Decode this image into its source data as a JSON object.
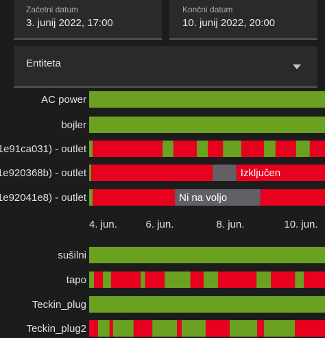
{
  "form": {
    "start_label": "Začetni datum",
    "start_value": "3. junij 2022, 17:00",
    "end_label": "Končni datum",
    "end_value": "10. junij 2022, 20:00",
    "entity_label": "Entiteta"
  },
  "timelines": [
    {
      "xlim": [
        4,
        10.68
      ],
      "xticks": [
        {
          "value": 4,
          "label": "4. jun."
        },
        {
          "value": 6,
          "label": "6. jun."
        },
        {
          "value": 8,
          "label": "8. jun."
        },
        {
          "value": 10,
          "label": "10. jun."
        }
      ],
      "rows": [
        {
          "name": "AC power",
          "segments": [
            {
              "from": 4,
              "to": 10.68,
              "color": "#6aa121"
            }
          ]
        },
        {
          "name": "bojler",
          "segments": [
            {
              "from": 4,
              "to": 10.68,
              "color": "#6aa121"
            }
          ]
        },
        {
          "name": "1e91ca031) - outlet",
          "segments": [
            {
              "from": 4,
              "to": 4.1,
              "color": "#6aa121"
            },
            {
              "from": 4.1,
              "to": 6.08,
              "color": "#e8011e"
            },
            {
              "from": 6.08,
              "to": 6.39,
              "color": "#6aa121"
            },
            {
              "from": 6.39,
              "to": 7.05,
              "color": "#e8011e"
            },
            {
              "from": 7.05,
              "to": 7.36,
              "color": "#6aa121"
            },
            {
              "from": 7.36,
              "to": 7.79,
              "color": "#e8011e"
            },
            {
              "from": 7.79,
              "to": 8.31,
              "color": "#6aa121"
            },
            {
              "from": 8.31,
              "to": 8.95,
              "color": "#e8011e"
            },
            {
              "from": 8.95,
              "to": 9.28,
              "color": "#6aa121"
            },
            {
              "from": 9.28,
              "to": 9.86,
              "color": "#e8011e"
            },
            {
              "from": 9.86,
              "to": 10.25,
              "color": "#6aa121"
            },
            {
              "from": 10.25,
              "to": 10.68,
              "color": "#e8011e"
            }
          ]
        },
        {
          "name": "1e920368b) - outlet",
          "segments": [
            {
              "from": 4,
              "to": 4.06,
              "color": "#6aa121"
            },
            {
              "from": 4.06,
              "to": 7.5,
              "color": "#e8011e"
            },
            {
              "from": 7.5,
              "to": 8.17,
              "color": "#616165"
            },
            {
              "from": 8.17,
              "to": 10.68,
              "color": "#e8011e",
              "label": "Izključen"
            }
          ]
        },
        {
          "name": "1e92041e8) - outlet",
          "segments": [
            {
              "from": 4,
              "to": 4.1,
              "color": "#6aa121"
            },
            {
              "from": 4.1,
              "to": 6.43,
              "color": "#e8011e"
            },
            {
              "from": 6.43,
              "to": 8.85,
              "color": "#616165",
              "label": "Ni na voljo"
            },
            {
              "from": 8.85,
              "to": 10.68,
              "color": "#e8011e"
            }
          ]
        }
      ]
    },
    {
      "xlim": [
        4,
        10.68
      ],
      "rows": [
        {
          "name": "sušilni",
          "segments": [
            {
              "from": 4,
              "to": 10.68,
              "color": "#6aa121"
            }
          ]
        },
        {
          "name": "tapo",
          "segments": [
            {
              "from": 4,
              "to": 4.14,
              "color": "#6aa121"
            },
            {
              "from": 4.14,
              "to": 4.39,
              "color": "#e8011e"
            },
            {
              "from": 4.39,
              "to": 4.62,
              "color": "#6aa121"
            },
            {
              "from": 4.62,
              "to": 5.46,
              "color": "#e8011e"
            },
            {
              "from": 5.46,
              "to": 5.59,
              "color": "#6aa121"
            },
            {
              "from": 5.59,
              "to": 6.14,
              "color": "#e8011e"
            },
            {
              "from": 6.14,
              "to": 6.87,
              "color": "#6aa121"
            },
            {
              "from": 6.87,
              "to": 7.24,
              "color": "#e8011e"
            },
            {
              "from": 7.24,
              "to": 7.65,
              "color": "#6aa121"
            },
            {
              "from": 7.65,
              "to": 8.74,
              "color": "#e8011e"
            },
            {
              "from": 8.74,
              "to": 9.15,
              "color": "#6aa121"
            },
            {
              "from": 9.15,
              "to": 9.83,
              "color": "#e8011e"
            },
            {
              "from": 9.83,
              "to": 10.08,
              "color": "#6aa121"
            },
            {
              "from": 10.08,
              "to": 10.68,
              "color": "#e8011e"
            }
          ]
        },
        {
          "name": "Teckin_plug",
          "segments": [
            {
              "from": 4,
              "to": 10.68,
              "color": "#6aa121"
            }
          ]
        },
        {
          "name": "Teckin_plug2",
          "segments": [
            {
              "from": 4,
              "to": 4.25,
              "color": "#e8011e"
            },
            {
              "from": 4.25,
              "to": 4.58,
              "color": "#6aa121"
            },
            {
              "from": 4.58,
              "to": 4.68,
              "color": "#e8011e"
            },
            {
              "from": 4.68,
              "to": 5.26,
              "color": "#6aa121"
            },
            {
              "from": 5.26,
              "to": 5.79,
              "color": "#e8011e"
            },
            {
              "from": 5.79,
              "to": 6.49,
              "color": "#6aa121"
            },
            {
              "from": 6.49,
              "to": 6.62,
              "color": "#e8011e"
            },
            {
              "from": 6.62,
              "to": 7.3,
              "color": "#6aa121"
            },
            {
              "from": 7.3,
              "to": 7.98,
              "color": "#e8011e"
            },
            {
              "from": 7.98,
              "to": 8.76,
              "color": "#6aa121"
            },
            {
              "from": 8.76,
              "to": 8.95,
              "color": "#e8011e"
            },
            {
              "from": 8.95,
              "to": 9.83,
              "color": "#6aa121"
            },
            {
              "from": 9.83,
              "to": 10.68,
              "color": "#e8011e"
            }
          ]
        }
      ]
    }
  ]
}
